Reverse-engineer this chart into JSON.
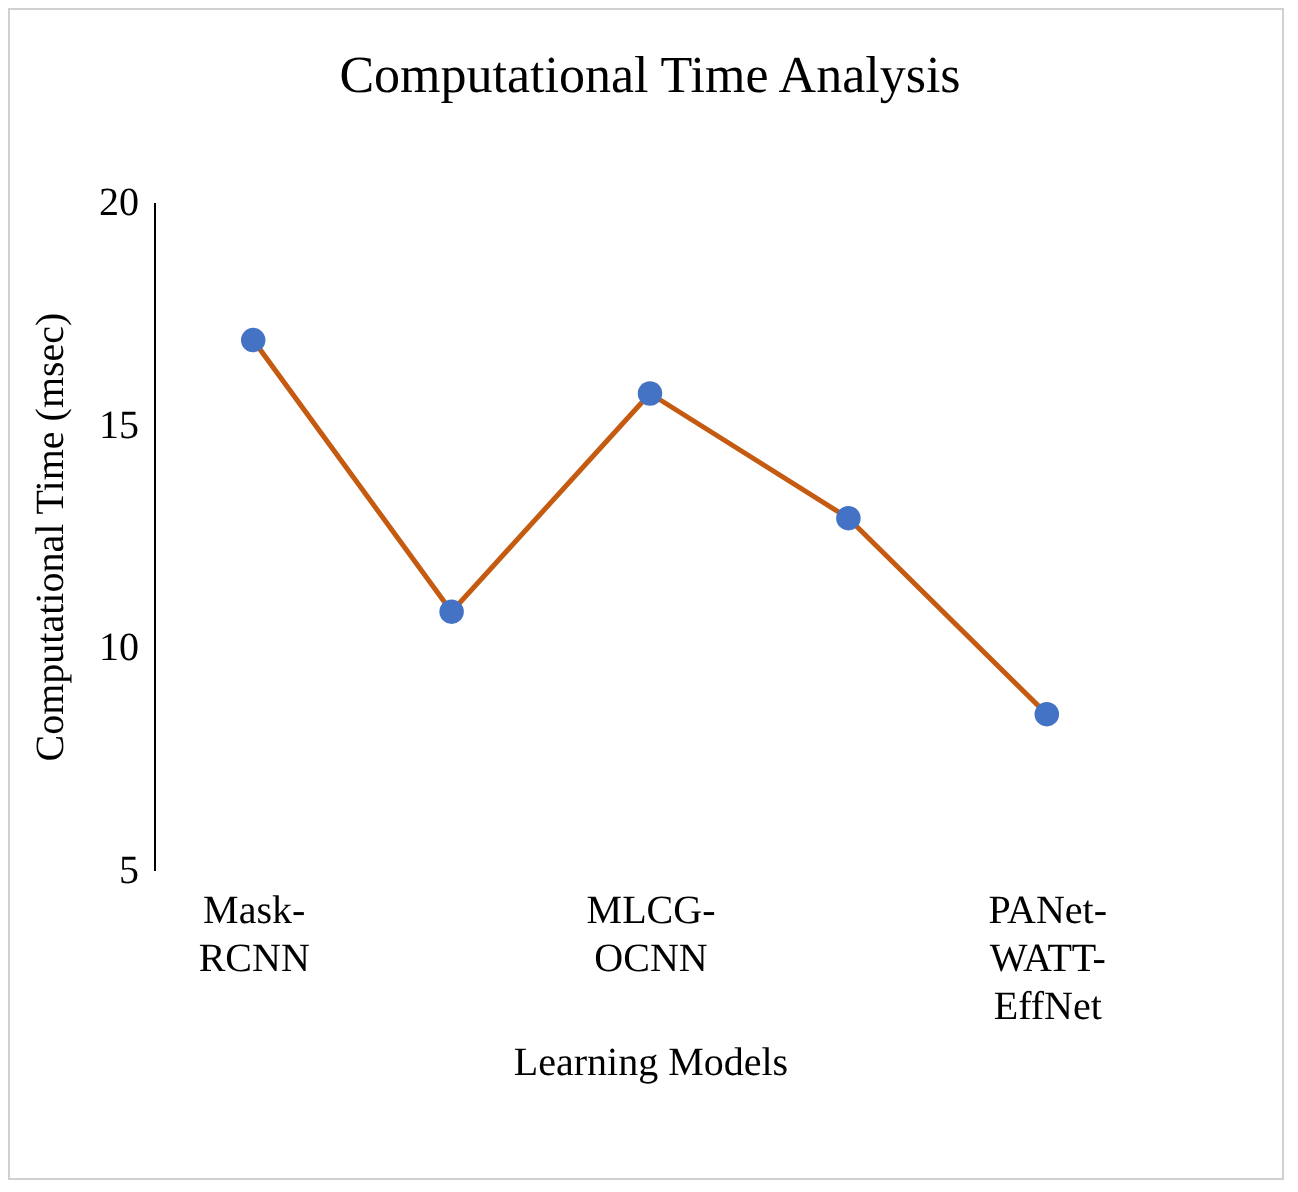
{
  "chart_data": {
    "type": "line",
    "title": "Computational Time Analysis",
    "xlabel": "Learning Models",
    "ylabel": "Computational Time (msec)",
    "categories": [
      "Mask-RCNN",
      null,
      "MLCG-OCNN",
      null,
      "PANet-WATT-EffNet"
    ],
    "series": [
      {
        "color": "#c55a11",
        "colors": [
          "#4472c4",
          "#4472c4",
          "#4472c4",
          "#4472c4",
          "#4472c4"
        ],
        "values": [
          16.9,
          10.8,
          15.7,
          12.9,
          8.5
        ]
      }
    ],
    "ylim": [
      5,
      20
    ],
    "yticks": [
      5,
      10,
      15,
      20
    ],
    "marker": "circle",
    "line_style": "solid",
    "grid": false
  }
}
